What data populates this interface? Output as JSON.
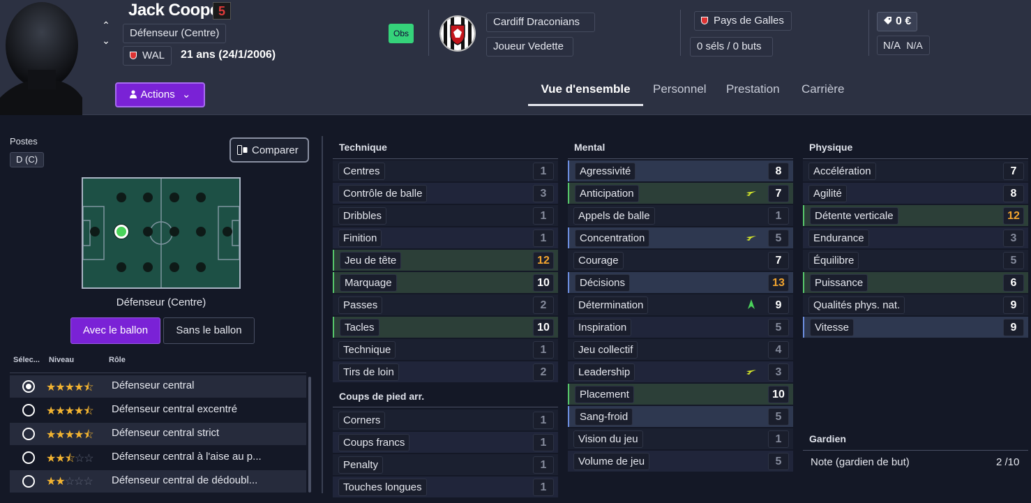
{
  "player": {
    "name": "Jack Cooper",
    "shirt": "5",
    "position": "Défenseur (Centre)",
    "nation_code": "WAL",
    "age_dob": "21 ans (24/1/2006)",
    "actions_label": "Actions",
    "obs_label": "Obs"
  },
  "club": {
    "name": "Cardiff Draconians",
    "status": "Joueur Vedette"
  },
  "international": {
    "country": "Pays de Galles",
    "caps": "0 séls / 0 buts"
  },
  "finance": {
    "value": "0 €",
    "na1": "N/A",
    "na2": "N/A"
  },
  "tabs": [
    "Vue d'ensemble",
    "Personnel",
    "Prestation",
    "Carrière"
  ],
  "left": {
    "postes_label": "Postes",
    "poste_code": "D (C)",
    "compare_label": "Comparer",
    "pitch_caption": "Défenseur (Centre)",
    "with_ball": "Avec le ballon",
    "without_ball": "Sans le ballon",
    "col_select": "Sélec...",
    "col_level": "Niveau",
    "col_role": "Rôle",
    "roles": [
      {
        "name": "Défenseur central",
        "stars": 4.5,
        "selected": true
      },
      {
        "name": "Défenseur central excentré",
        "stars": 4.5,
        "selected": false
      },
      {
        "name": "Défenseur central strict",
        "stars": 4.5,
        "selected": false
      },
      {
        "name": "Défenseur central à l'aise au p...",
        "stars": 2.5,
        "selected": false
      },
      {
        "name": "Défenseur central de dédoubl...",
        "stars": 2,
        "selected": false
      }
    ]
  },
  "technique": {
    "title": "Technique",
    "rows": [
      {
        "label": "Centres",
        "value": "1"
      },
      {
        "label": "Contrôle de balle",
        "value": "3"
      },
      {
        "label": "Dribbles",
        "value": "1"
      },
      {
        "label": "Finition",
        "value": "1"
      },
      {
        "label": "Jeu de tête",
        "value": "12"
      },
      {
        "label": "Marquage",
        "value": "10"
      },
      {
        "label": "Passes",
        "value": "2"
      },
      {
        "label": "Tacles",
        "value": "10"
      },
      {
        "label": "Technique",
        "value": "1"
      },
      {
        "label": "Tirs de loin",
        "value": "2"
      }
    ]
  },
  "setpieces": {
    "title": "Coups de pied arr.",
    "rows": [
      {
        "label": "Corners",
        "value": "1"
      },
      {
        "label": "Coups francs",
        "value": "1"
      },
      {
        "label": "Penalty",
        "value": "1"
      },
      {
        "label": "Touches longues",
        "value": "1"
      }
    ]
  },
  "mental": {
    "title": "Mental",
    "rows": [
      {
        "label": "Agressivité",
        "value": "8"
      },
      {
        "label": "Anticipation",
        "value": "7"
      },
      {
        "label": "Appels de balle",
        "value": "1"
      },
      {
        "label": "Concentration",
        "value": "5"
      },
      {
        "label": "Courage",
        "value": "7"
      },
      {
        "label": "Décisions",
        "value": "13"
      },
      {
        "label": "Détermination",
        "value": "9"
      },
      {
        "label": "Inspiration",
        "value": "5"
      },
      {
        "label": "Jeu collectif",
        "value": "4"
      },
      {
        "label": "Leadership",
        "value": "3"
      },
      {
        "label": "Placement",
        "value": "10"
      },
      {
        "label": "Sang-froid",
        "value": "5"
      },
      {
        "label": "Vision du jeu",
        "value": "1"
      },
      {
        "label": "Volume de jeu",
        "value": "5"
      }
    ]
  },
  "physique": {
    "title": "Physique",
    "rows": [
      {
        "label": "Accélération",
        "value": "7"
      },
      {
        "label": "Agilité",
        "value": "8"
      },
      {
        "label": "Détente verticale",
        "value": "12"
      },
      {
        "label": "Endurance",
        "value": "3"
      },
      {
        "label": "Équilibre",
        "value": "5"
      },
      {
        "label": "Puissance",
        "value": "6"
      },
      {
        "label": "Qualités phys. nat.",
        "value": "9"
      },
      {
        "label": "Vitesse",
        "value": "9"
      }
    ]
  },
  "goalkeeper": {
    "title": "Gardien",
    "label": "Note (gardien de but)",
    "value": "2 /10"
  },
  "colors": {
    "accent": "#7a22d6",
    "highlight": "#f3a52f",
    "key_green": "#56c66a",
    "key_blue": "#6c8ee0",
    "trend_up": "#4bd35b",
    "trend_side": "#d6e82a"
  }
}
